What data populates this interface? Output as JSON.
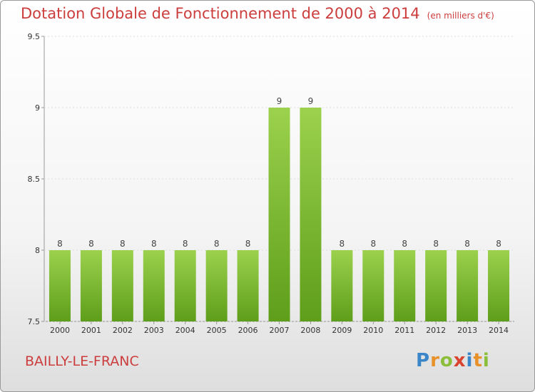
{
  "chart_data": {
    "type": "bar",
    "title": "Dotation Globale de Fonctionnement de 2000 à 2014",
    "subtitle": "(en milliers d'€)",
    "categories": [
      "2000",
      "2001",
      "2002",
      "2003",
      "2004",
      "2005",
      "2006",
      "2007",
      "2008",
      "2009",
      "2010",
      "2011",
      "2012",
      "2013",
      "2014"
    ],
    "values": [
      8,
      8,
      8,
      8,
      8,
      8,
      8,
      9,
      9,
      8,
      8,
      8,
      8,
      8,
      8
    ],
    "ylim": [
      7.5,
      9.5
    ],
    "yticks": [
      "7.5",
      "8",
      "8.5",
      "9",
      "9.5"
    ],
    "xlabel": "",
    "ylabel": "",
    "bar_color_top": "#9bd14d",
    "bar_color_bottom": "#5e9e1a"
  },
  "footer": {
    "commune": "BAILLY-LE-FRANC",
    "logo_letters": [
      {
        "ch": "P",
        "color": "#3a86c8"
      },
      {
        "ch": "r",
        "color": "#e8912a"
      },
      {
        "ch": "o",
        "color": "#8bbf3a"
      },
      {
        "ch": "x",
        "color": "#d8442f"
      },
      {
        "ch": "i",
        "color": "#3a86c8"
      },
      {
        "ch": "t",
        "color": "#e8912a"
      },
      {
        "ch": "i",
        "color": "#8bbf3a"
      }
    ]
  },
  "colors": {
    "title": "#cc3d3d",
    "axis": "#999999"
  }
}
